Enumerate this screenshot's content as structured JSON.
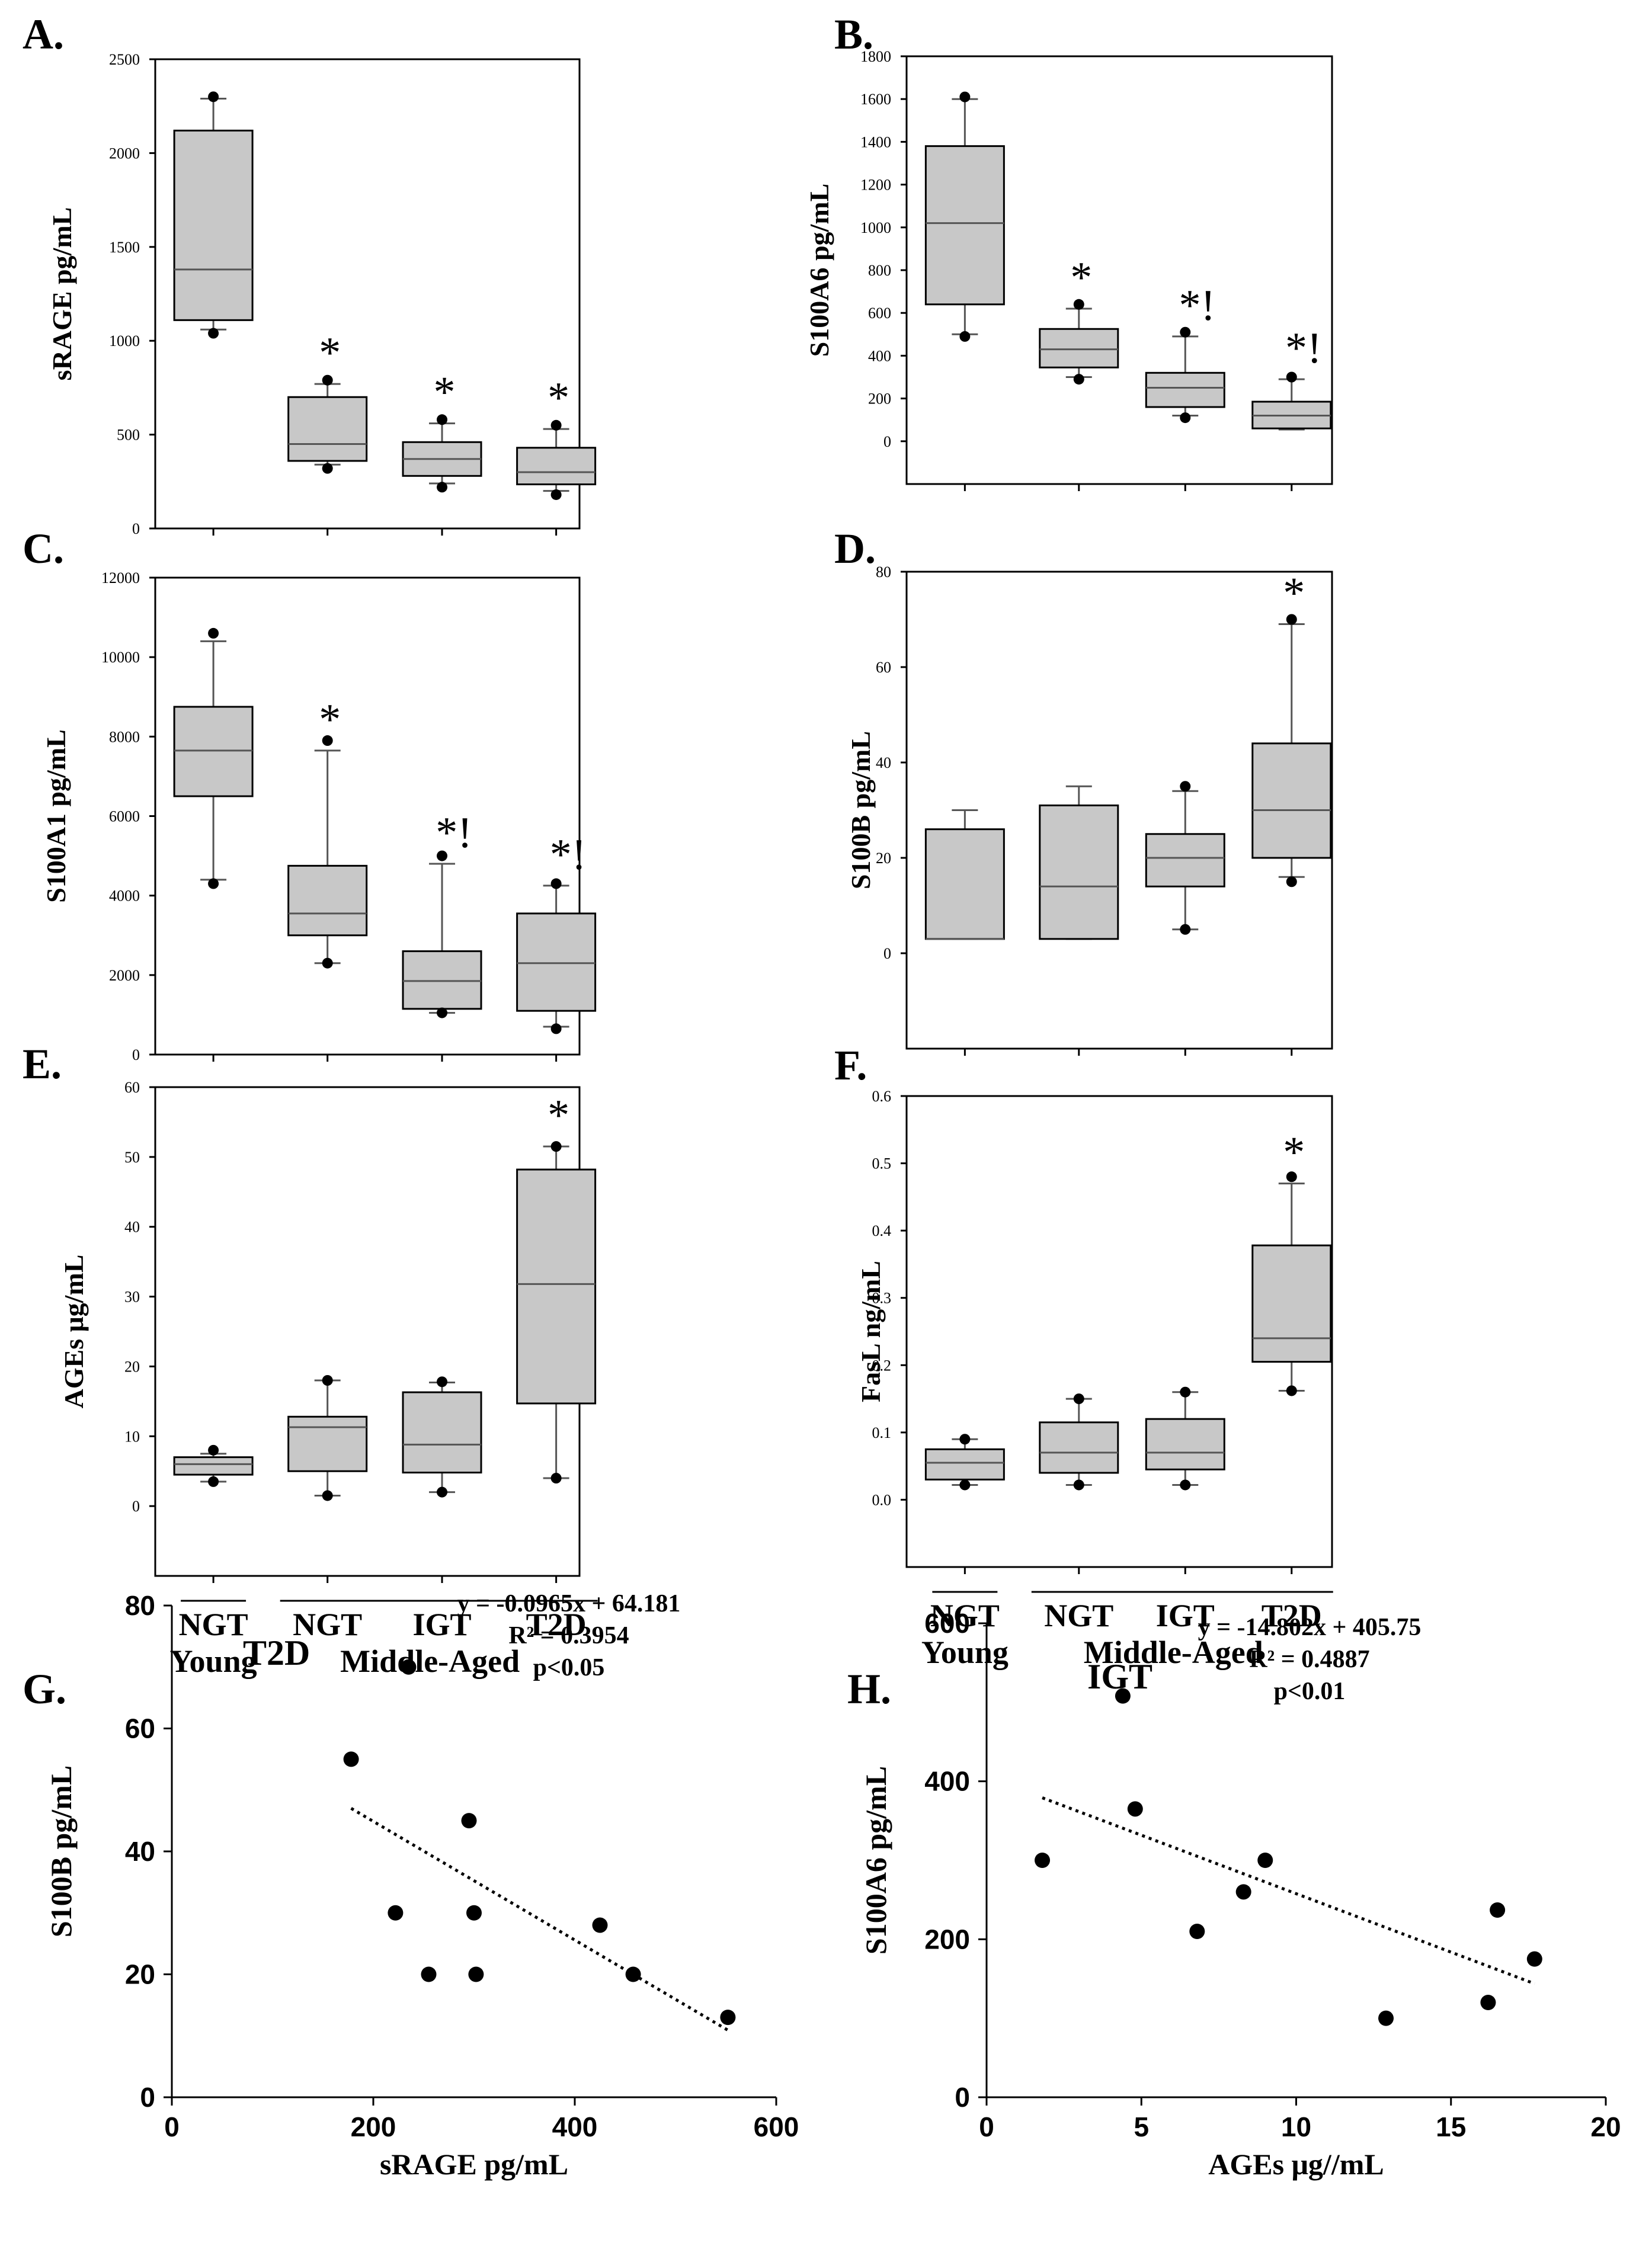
{
  "figure": {
    "panel_letters": [
      "A.",
      "B.",
      "C.",
      "D.",
      "E.",
      "F.",
      "G.",
      "H."
    ]
  },
  "groups": {
    "labels": [
      "NGT",
      "NGT",
      "IGT",
      "T2D"
    ],
    "bottom_left": "Young",
    "bottom_right": "Middle-Aged"
  },
  "chart_data": [
    {
      "type": "box",
      "panel": "A.",
      "ylabel": "sRAGE pg/mL",
      "ylim": [
        0,
        2500
      ],
      "yticks": [
        0,
        500,
        1000,
        1500,
        2000,
        2500
      ],
      "ytick_labels": [
        "0",
        "500",
        "1000",
        "1500",
        "2000",
        "2500"
      ],
      "boxes": [
        {
          "q1": 1110,
          "median": 1380,
          "q3": 2120,
          "wlo": 1060,
          "whi": 2290,
          "outliers": [
            1040,
            2300
          ],
          "sig": ""
        },
        {
          "q1": 360,
          "median": 450,
          "q3": 700,
          "wlo": 340,
          "whi": 770,
          "outliers": [
            320,
            790
          ],
          "sig": "*"
        },
        {
          "q1": 280,
          "median": 370,
          "q3": 460,
          "wlo": 240,
          "whi": 560,
          "outliers": [
            220,
            580
          ],
          "sig": "*"
        },
        {
          "q1": 235,
          "median": 300,
          "q3": 430,
          "wlo": 200,
          "whi": 530,
          "outliers": [
            180,
            550
          ],
          "sig": "*"
        }
      ]
    },
    {
      "type": "box",
      "panel": "B.",
      "ylabel": "S100A6 pg/mL",
      "ylim": [
        -200,
        1800
      ],
      "yticks": [
        0,
        200,
        400,
        600,
        800,
        1000,
        1200,
        1400,
        1600,
        1800
      ],
      "ytick_labels": [
        "0",
        "200",
        "400",
        "600",
        "800",
        "1000",
        "1200",
        "1400",
        "1600",
        "1800"
      ],
      "boxes": [
        {
          "q1": 640,
          "median": 1020,
          "q3": 1380,
          "wlo": 500,
          "whi": 1600,
          "outliers": [
            490,
            1610
          ],
          "sig": ""
        },
        {
          "q1": 345,
          "median": 430,
          "q3": 525,
          "wlo": 300,
          "whi": 620,
          "outliers": [
            290,
            640
          ],
          "sig": "*"
        },
        {
          "q1": 160,
          "median": 250,
          "q3": 320,
          "wlo": 120,
          "whi": 490,
          "outliers": [
            110,
            510
          ],
          "sig": "*!"
        },
        {
          "q1": 60,
          "median": 120,
          "q3": 185,
          "wlo": 55,
          "whi": 290,
          "outliers": [
            300
          ],
          "sig": "*!"
        }
      ]
    },
    {
      "type": "box",
      "panel": "C.",
      "ylabel": "S100A1 pg/mL",
      "ylim": [
        0,
        12000
      ],
      "yticks": [
        0,
        2000,
        4000,
        6000,
        8000,
        10000,
        12000
      ],
      "ytick_labels": [
        "0",
        "2000",
        "4000",
        "6000",
        "8000",
        "10000",
        "12000"
      ],
      "boxes": [
        {
          "q1": 6500,
          "median": 7650,
          "q3": 8750,
          "wlo": 4400,
          "whi": 10400,
          "outliers": [
            4300,
            10600
          ],
          "sig": ""
        },
        {
          "q1": 3000,
          "median": 3550,
          "q3": 4750,
          "wlo": 2300,
          "whi": 7650,
          "outliers": [
            2300,
            7900
          ],
          "sig": "*"
        },
        {
          "q1": 1150,
          "median": 1850,
          "q3": 2600,
          "wlo": 1050,
          "whi": 4800,
          "outliers": [
            1050,
            5000
          ],
          "sig": "*!"
        },
        {
          "q1": 1100,
          "median": 2300,
          "q3": 3550,
          "wlo": 700,
          "whi": 4250,
          "outliers": [
            650,
            4300
          ],
          "sig": "*!"
        }
      ]
    },
    {
      "type": "box",
      "panel": "D.",
      "ylabel": "S100B pg/mL",
      "ylim": [
        -20,
        80
      ],
      "yticks": [
        0,
        20,
        40,
        60,
        80
      ],
      "ytick_labels": [
        "0",
        "20",
        "40",
        "60",
        "80"
      ],
      "boxes": [
        {
          "q1": 3,
          "median": 3,
          "q3": 26,
          "wlo": 3,
          "whi": 30,
          "outliers": [],
          "sig": ""
        },
        {
          "q1": 3,
          "median": 14,
          "q3": 31,
          "wlo": 3,
          "whi": 35,
          "outliers": [],
          "sig": ""
        },
        {
          "q1": 14,
          "median": 20,
          "q3": 25,
          "wlo": 5,
          "whi": 34,
          "outliers": [
            5,
            35
          ],
          "sig": ""
        },
        {
          "q1": 20,
          "median": 30,
          "q3": 44,
          "wlo": 16,
          "whi": 69,
          "outliers": [
            15,
            70
          ],
          "sig": "*"
        }
      ]
    },
    {
      "type": "box",
      "panel": "E.",
      "ylabel": "AGEs μg/mL",
      "ylim": [
        -10,
        60
      ],
      "yticks": [
        0,
        10,
        20,
        30,
        40,
        50,
        60
      ],
      "ytick_labels": [
        "0",
        "10",
        "20",
        "30",
        "40",
        "50",
        "60"
      ],
      "boxes": [
        {
          "q1": 4.5,
          "median": 6,
          "q3": 7,
          "wlo": 3.5,
          "whi": 7.5,
          "outliers": [
            3.5,
            8
          ],
          "sig": ""
        },
        {
          "q1": 5,
          "median": 11.3,
          "q3": 12.8,
          "wlo": 1.5,
          "whi": 18,
          "outliers": [
            1.5,
            18
          ],
          "sig": ""
        },
        {
          "q1": 4.8,
          "median": 8.8,
          "q3": 16.3,
          "wlo": 2,
          "whi": 17.7,
          "outliers": [
            2,
            17.8
          ],
          "sig": ""
        },
        {
          "q1": 14.7,
          "median": 31.8,
          "q3": 48.2,
          "wlo": 4,
          "whi": 51.5,
          "outliers": [
            4,
            51.5
          ],
          "sig": "*"
        }
      ]
    },
    {
      "type": "box",
      "panel": "F.",
      "ylabel": "FasL ng/mL",
      "ylim": [
        -0.1,
        0.6
      ],
      "yticks": [
        0,
        0.1,
        0.2,
        0.3,
        0.4,
        0.5,
        0.6
      ],
      "ytick_labels": [
        "0.0",
        "0.1",
        "0.2",
        "0.3",
        "0.4",
        "0.5",
        "0.6"
      ],
      "boxes": [
        {
          "q1": 0.03,
          "median": 0.055,
          "q3": 0.075,
          "wlo": 0.022,
          "whi": 0.09,
          "outliers": [
            0.022,
            0.09
          ],
          "sig": ""
        },
        {
          "q1": 0.04,
          "median": 0.07,
          "q3": 0.115,
          "wlo": 0.022,
          "whi": 0.15,
          "outliers": [
            0.022,
            0.15
          ],
          "sig": ""
        },
        {
          "q1": 0.045,
          "median": 0.07,
          "q3": 0.12,
          "wlo": 0.022,
          "whi": 0.16,
          "outliers": [
            0.022,
            0.16
          ],
          "sig": ""
        },
        {
          "q1": 0.205,
          "median": 0.24,
          "q3": 0.378,
          "wlo": 0.162,
          "whi": 0.47,
          "outliers": [
            0.162,
            0.48
          ],
          "sig": "*"
        }
      ]
    },
    {
      "type": "scatter",
      "panel": "G.",
      "group_label": "T2D",
      "xlabel": "sRAGE pg/mL",
      "ylabel": "S100B pg/mL",
      "xlim": [
        0,
        600
      ],
      "ylim": [
        0,
        80
      ],
      "xticks": [
        0,
        200,
        400,
        600
      ],
      "yticks": [
        0,
        20,
        40,
        60,
        80
      ],
      "x": [
        178,
        235,
        222,
        255,
        295,
        300,
        302,
        425,
        458,
        552
      ],
      "y": [
        55,
        70,
        30,
        20,
        45,
        30,
        20,
        28,
        20,
        13
      ],
      "trendline": {
        "slope": -0.0965,
        "intercept": 64.181,
        "x_range": [
          178,
          552
        ]
      },
      "annotation": [
        "y = -0.0965x + 64.181",
        "R² = 0.3954",
        "p<0.05"
      ]
    },
    {
      "type": "scatter",
      "panel": "H.",
      "group_label": "IGT",
      "xlabel": "AGEs μg//mL",
      "ylabel": "S100A6 pg/mL",
      "xlim": [
        0,
        20
      ],
      "ylim": [
        0,
        600
      ],
      "xticks": [
        0,
        5,
        10,
        15,
        20
      ],
      "yticks": [
        0,
        200,
        400,
        600
      ],
      "x": [
        1.8,
        4.4,
        4.8,
        6.8,
        8.3,
        9.0,
        12.9,
        16.2,
        16.5,
        17.7
      ],
      "y": [
        300,
        508,
        365,
        210,
        260,
        300,
        100,
        120,
        237,
        175
      ],
      "trendline": {
        "slope": -14.802,
        "intercept": 405.75,
        "x_range": [
          1.8,
          17.7
        ]
      },
      "annotation": [
        "y = -14.802x + 405.75",
        "R² = 0.4887",
        "p<0.01"
      ]
    }
  ]
}
